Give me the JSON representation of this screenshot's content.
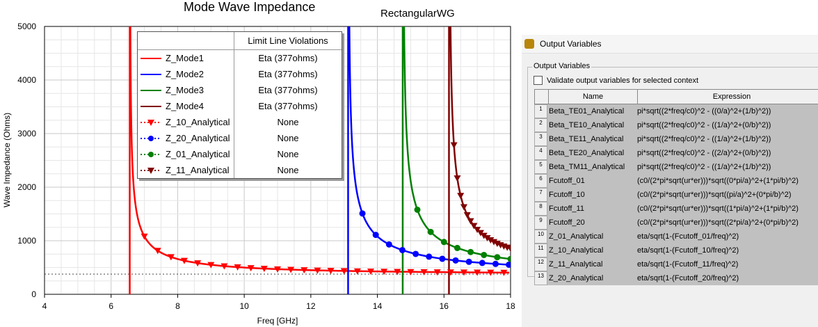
{
  "chart_data": {
    "type": "line",
    "title": "Mode Wave Impedance",
    "subtitle": "RectangularWG",
    "xlabel": "Freq [GHz]",
    "ylabel": "Wave Impedance (Ohms)",
    "xlim": [
      4,
      18
    ],
    "ylim": [
      0,
      5000
    ],
    "xticks": [
      "4",
      "6",
      "8",
      "10",
      "12",
      "14",
      "16",
      "18"
    ],
    "yticks": [
      "0",
      "1000",
      "2000",
      "3000",
      "4000",
      "5000"
    ],
    "grid": true,
    "eta_ohms": 377,
    "limit_line": {
      "value": 377,
      "style": "dotted"
    },
    "series": [
      {
        "name": "Z_Mode1",
        "color": "#ff0000",
        "cutoff_ghz": 6.56,
        "style": "line",
        "violation": "Eta (377ohms)"
      },
      {
        "name": "Z_Mode2",
        "color": "#0000ff",
        "cutoff_ghz": 13.12,
        "style": "line",
        "violation": "Eta (377ohms)"
      },
      {
        "name": "Z_Mode3",
        "color": "#008000",
        "cutoff_ghz": 14.76,
        "style": "line",
        "violation": "Eta (377ohms)"
      },
      {
        "name": "Z_Mode4",
        "color": "#800000",
        "cutoff_ghz": 16.15,
        "style": "line",
        "violation": "Eta (377ohms)"
      },
      {
        "name": "Z_10_Analytical",
        "color": "#ff0000",
        "cutoff_ghz": 6.56,
        "style": "triangle",
        "violation": "None",
        "marker_start": 7.0,
        "marker_step": 0.4
      },
      {
        "name": "Z_20_Analytical",
        "color": "#0000ff",
        "cutoff_ghz": 13.12,
        "style": "circle",
        "violation": "None",
        "marker_start": 13.55,
        "marker_step": 0.4
      },
      {
        "name": "Z_01_Analytical",
        "color": "#008000",
        "cutoff_ghz": 14.76,
        "style": "circle",
        "violation": "None",
        "marker_start": 15.2,
        "marker_step": 0.4
      },
      {
        "name": "Z_11_Analytical",
        "color": "#800000",
        "cutoff_ghz": 16.15,
        "style": "triangle",
        "violation": "None",
        "marker_start": 16.3,
        "marker_step": 0.1
      }
    ],
    "legend": {
      "placement": "top-center",
      "header": "Limit Line Violations"
    }
  },
  "panel": {
    "title": "Output Variables",
    "group_label": "Output Variables",
    "validate_label": "Validate output variables for selected context",
    "validate_checked": false,
    "columns": [
      "Name",
      "Expression"
    ],
    "rows": [
      {
        "n": "1",
        "name": "Beta_TE01_Analytical",
        "expr": "pi*sqrt((2*freq/c0)^2 - ((0/a)^2+(1/b)^2))"
      },
      {
        "n": "2",
        "name": "Beta_TE10_Analytical",
        "expr": "pi*sqrt((2*freq/c0)^2 - ((1/a)^2+(0/b)^2))"
      },
      {
        "n": "3",
        "name": "Beta_TE11_Analytical",
        "expr": "pi*sqrt((2*freq/c0)^2 - ((1/a)^2+(1/b)^2))"
      },
      {
        "n": "4",
        "name": "Beta_TE20_Analytical",
        "expr": "pi*sqrt((2*freq/c0)^2 - ((2/a)^2+(0/b)^2))"
      },
      {
        "n": "5",
        "name": "Beta_TM11_Analytical",
        "expr": "pi*sqrt((2*freq/c0)^2 - ((1/a)^2+(1/b)^2))"
      },
      {
        "n": "6",
        "name": "Fcutoff_01",
        "expr": "(c0/(2*pi*sqrt(ur*er)))*sqrt((0*pi/a)^2+(1*pi/b)^2)"
      },
      {
        "n": "7",
        "name": "Fcutoff_10",
        "expr": "(c0/(2*pi*sqrt(ur*er)))*sqrt((pi/a)^2+(0*pi/b)^2)"
      },
      {
        "n": "8",
        "name": "Fcutoff_11",
        "expr": "(c0/(2*pi*sqrt(ur*er)))*sqrt((1*pi/a)^2+(1*pi/b)^2)"
      },
      {
        "n": "9",
        "name": "Fcutoff_20",
        "expr": "(c0/(2*pi*sqrt(ur*er)))*sqrt((2*pi/a)^2+(0*pi/b)^2)"
      },
      {
        "n": "10",
        "name": "Z_01_Analytical",
        "expr": "eta/sqrt(1-(Fcutoff_01/freq)^2)"
      },
      {
        "n": "11",
        "name": "Z_10_Analytical",
        "expr": "eta/sqrt(1-(Fcutoff_10/freq)^2)"
      },
      {
        "n": "12",
        "name": "Z_11_Analytical",
        "expr": "eta/sqrt(1-(Fcutoff_11/freq)^2)"
      },
      {
        "n": "13",
        "name": "Z_20_Analytical",
        "expr": "eta/sqrt(1-(Fcutoff_20/freq)^2)"
      }
    ]
  }
}
